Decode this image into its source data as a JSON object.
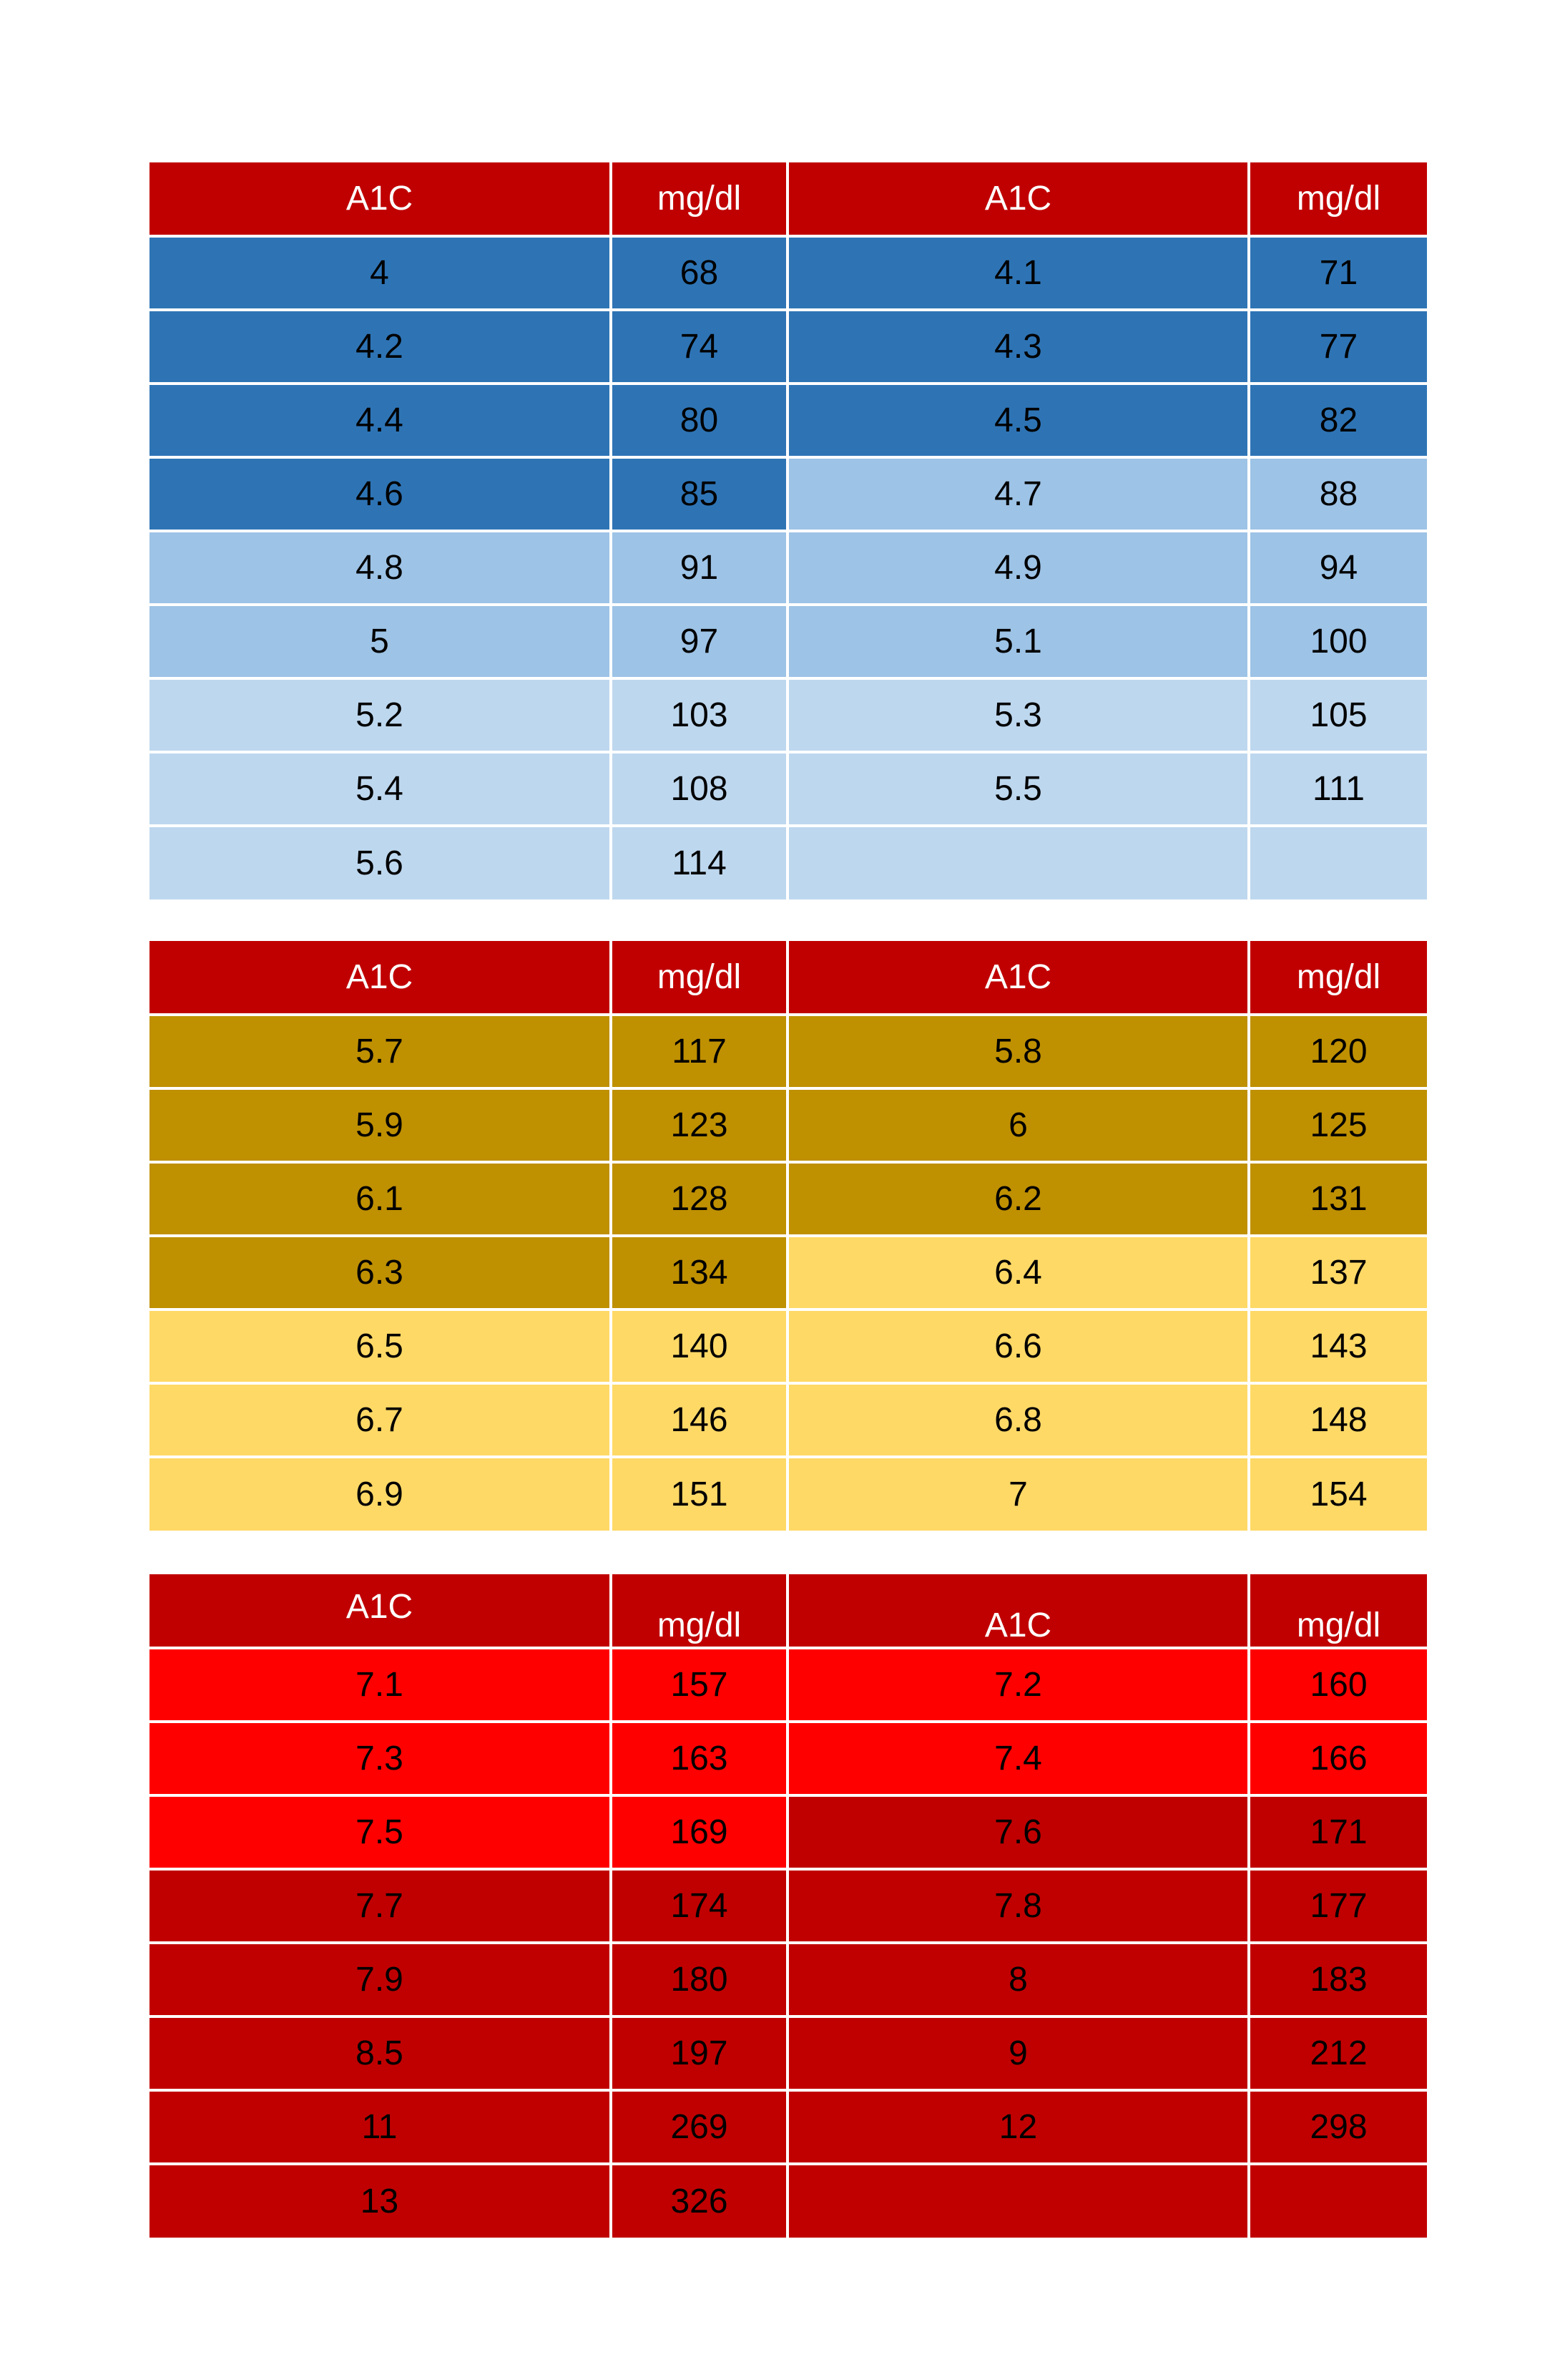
{
  "colors": {
    "header": "#c00000",
    "header_text": "#ffffff",
    "blue_dark": "#2e74b5",
    "blue_mid": "#9dc3e6",
    "blue_light": "#bdd7ee",
    "gold_dark": "#bf9000",
    "gold_light": "#ffd966",
    "red_bright": "#ff0000",
    "red_dark": "#c00000"
  },
  "tables": [
    {
      "headers": [
        "A1C",
        "mg/dl",
        "A1C",
        "mg/dl"
      ],
      "rows": [
        {
          "cells": [
            "4",
            "68",
            "4.1",
            "71"
          ],
          "shades": [
            "blue_dark",
            "blue_dark",
            "blue_dark",
            "blue_dark"
          ]
        },
        {
          "cells": [
            "4.2",
            "74",
            "4.3",
            "77"
          ],
          "shades": [
            "blue_dark",
            "blue_dark",
            "blue_dark",
            "blue_dark"
          ]
        },
        {
          "cells": [
            "4.4",
            "80",
            "4.5",
            "82"
          ],
          "shades": [
            "blue_dark",
            "blue_dark",
            "blue_dark",
            "blue_dark"
          ]
        },
        {
          "cells": [
            "4.6",
            "85",
            "4.7",
            "88"
          ],
          "shades": [
            "blue_dark",
            "blue_dark",
            "blue_mid",
            "blue_mid"
          ]
        },
        {
          "cells": [
            "4.8",
            "91",
            "4.9",
            "94"
          ],
          "shades": [
            "blue_mid",
            "blue_mid",
            "blue_mid",
            "blue_mid"
          ]
        },
        {
          "cells": [
            "5",
            "97",
            "5.1",
            "100"
          ],
          "shades": [
            "blue_mid",
            "blue_mid",
            "blue_mid",
            "blue_mid"
          ]
        },
        {
          "cells": [
            "5.2",
            "103",
            "5.3",
            "105"
          ],
          "shades": [
            "blue_light",
            "blue_light",
            "blue_light",
            "blue_light"
          ]
        },
        {
          "cells": [
            "5.4",
            "108",
            "5.5",
            "111"
          ],
          "shades": [
            "blue_light",
            "blue_light",
            "blue_light",
            "blue_light"
          ]
        },
        {
          "cells": [
            "5.6",
            "114",
            "",
            ""
          ],
          "shades": [
            "blue_light",
            "blue_light",
            "blue_light",
            "blue_light"
          ]
        }
      ]
    },
    {
      "headers": [
        "A1C",
        "mg/dl",
        "A1C",
        "mg/dl"
      ],
      "rows": [
        {
          "cells": [
            "5.7",
            "117",
            "5.8",
            "120"
          ],
          "shades": [
            "gold_dark",
            "gold_dark",
            "gold_dark",
            "gold_dark"
          ]
        },
        {
          "cells": [
            "5.9",
            "123",
            "6",
            "125"
          ],
          "shades": [
            "gold_dark",
            "gold_dark",
            "gold_dark",
            "gold_dark"
          ]
        },
        {
          "cells": [
            "6.1",
            "128",
            "6.2",
            "131"
          ],
          "shades": [
            "gold_dark",
            "gold_dark",
            "gold_dark",
            "gold_dark"
          ]
        },
        {
          "cells": [
            "6.3",
            "134",
            "6.4",
            "137"
          ],
          "shades": [
            "gold_dark",
            "gold_dark",
            "gold_light",
            "gold_light"
          ]
        },
        {
          "cells": [
            "6.5",
            "140",
            "6.6",
            "143"
          ],
          "shades": [
            "gold_light",
            "gold_light",
            "gold_light",
            "gold_light"
          ]
        },
        {
          "cells": [
            "6.7",
            "146",
            "6.8",
            "148"
          ],
          "shades": [
            "gold_light",
            "gold_light",
            "gold_light",
            "gold_light"
          ]
        },
        {
          "cells": [
            "6.9",
            "151",
            "7",
            "154"
          ],
          "shades": [
            "gold_light",
            "gold_light",
            "gold_light",
            "gold_light"
          ]
        }
      ]
    },
    {
      "headers": [
        "A1C",
        "mg/dl",
        "A1C",
        "mg/dl"
      ],
      "rows": [
        {
          "cells": [
            "7.1",
            "157",
            "7.2",
            "160"
          ],
          "shades": [
            "red_bright",
            "red_bright",
            "red_bright",
            "red_bright"
          ]
        },
        {
          "cells": [
            "7.3",
            "163",
            "7.4",
            "166"
          ],
          "shades": [
            "red_bright",
            "red_bright",
            "red_bright",
            "red_bright"
          ]
        },
        {
          "cells": [
            "7.5",
            "169",
            "7.6",
            "171"
          ],
          "shades": [
            "red_bright",
            "red_bright",
            "red_dark",
            "red_dark"
          ]
        },
        {
          "cells": [
            "7.7",
            "174",
            "7.8",
            "177"
          ],
          "shades": [
            "red_dark",
            "red_dark",
            "red_dark",
            "red_dark"
          ]
        },
        {
          "cells": [
            "7.9",
            "180",
            "8",
            "183"
          ],
          "shades": [
            "red_dark",
            "red_dark",
            "red_dark",
            "red_dark"
          ]
        },
        {
          "cells": [
            "8.5",
            "197",
            "9",
            "212"
          ],
          "shades": [
            "red_dark",
            "red_dark",
            "red_dark",
            "red_dark"
          ]
        },
        {
          "cells": [
            "11",
            "269",
            "12",
            "298"
          ],
          "shades": [
            "red_dark",
            "red_dark",
            "red_dark",
            "red_dark"
          ]
        },
        {
          "cells": [
            "13",
            "326",
            "",
            ""
          ],
          "shades": [
            "red_dark",
            "red_dark",
            "red_dark",
            "red_dark"
          ]
        }
      ]
    }
  ]
}
